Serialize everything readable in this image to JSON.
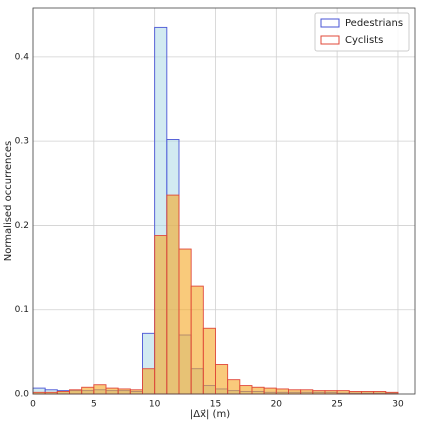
{
  "chart_data": {
    "type": "histogram",
    "xlabel": "|Δx⃗| (m)",
    "ylabel": "Normalised occurrences",
    "bins": [
      0,
      1,
      2,
      3,
      4,
      5,
      6,
      7,
      8,
      9,
      10,
      11,
      12,
      13,
      14,
      15,
      16,
      17,
      18,
      19,
      20,
      21,
      22,
      23,
      24,
      25,
      26,
      27,
      28,
      29,
      30
    ],
    "series": [
      {
        "name": "Pedestrians",
        "color": "#4a55d6",
        "fill": "#add8e6",
        "values": [
          0.007,
          0.005,
          0.004,
          0.004,
          0.004,
          0.005,
          0.004,
          0.004,
          0.003,
          0.072,
          0.435,
          0.302,
          0.07,
          0.03,
          0.01,
          0.006,
          0.004,
          0.003,
          0.003,
          0.002,
          0.002,
          0.002,
          0.002,
          0.002,
          0.002,
          0.001,
          0.001,
          0.001,
          0.001,
          0.001
        ]
      },
      {
        "name": "Cyclists",
        "color": "#e0483a",
        "fill": "#f5a623",
        "values": [
          0.002,
          0.002,
          0.003,
          0.005,
          0.008,
          0.011,
          0.007,
          0.006,
          0.005,
          0.03,
          0.188,
          0.236,
          0.172,
          0.128,
          0.078,
          0.035,
          0.017,
          0.01,
          0.008,
          0.007,
          0.006,
          0.005,
          0.005,
          0.004,
          0.004,
          0.004,
          0.003,
          0.003,
          0.003,
          0.002
        ]
      }
    ],
    "xlim": [
      0,
      31.4
    ],
    "xticks": [
      0,
      5,
      10,
      15,
      20,
      25,
      30
    ],
    "ylim": [
      0,
      0.458
    ],
    "yticks": [
      {
        "value": 0,
        "label": "0.0"
      },
      0.1,
      0.2,
      0.3,
      0.4
    ],
    "grid": true,
    "legend": "upper right"
  }
}
